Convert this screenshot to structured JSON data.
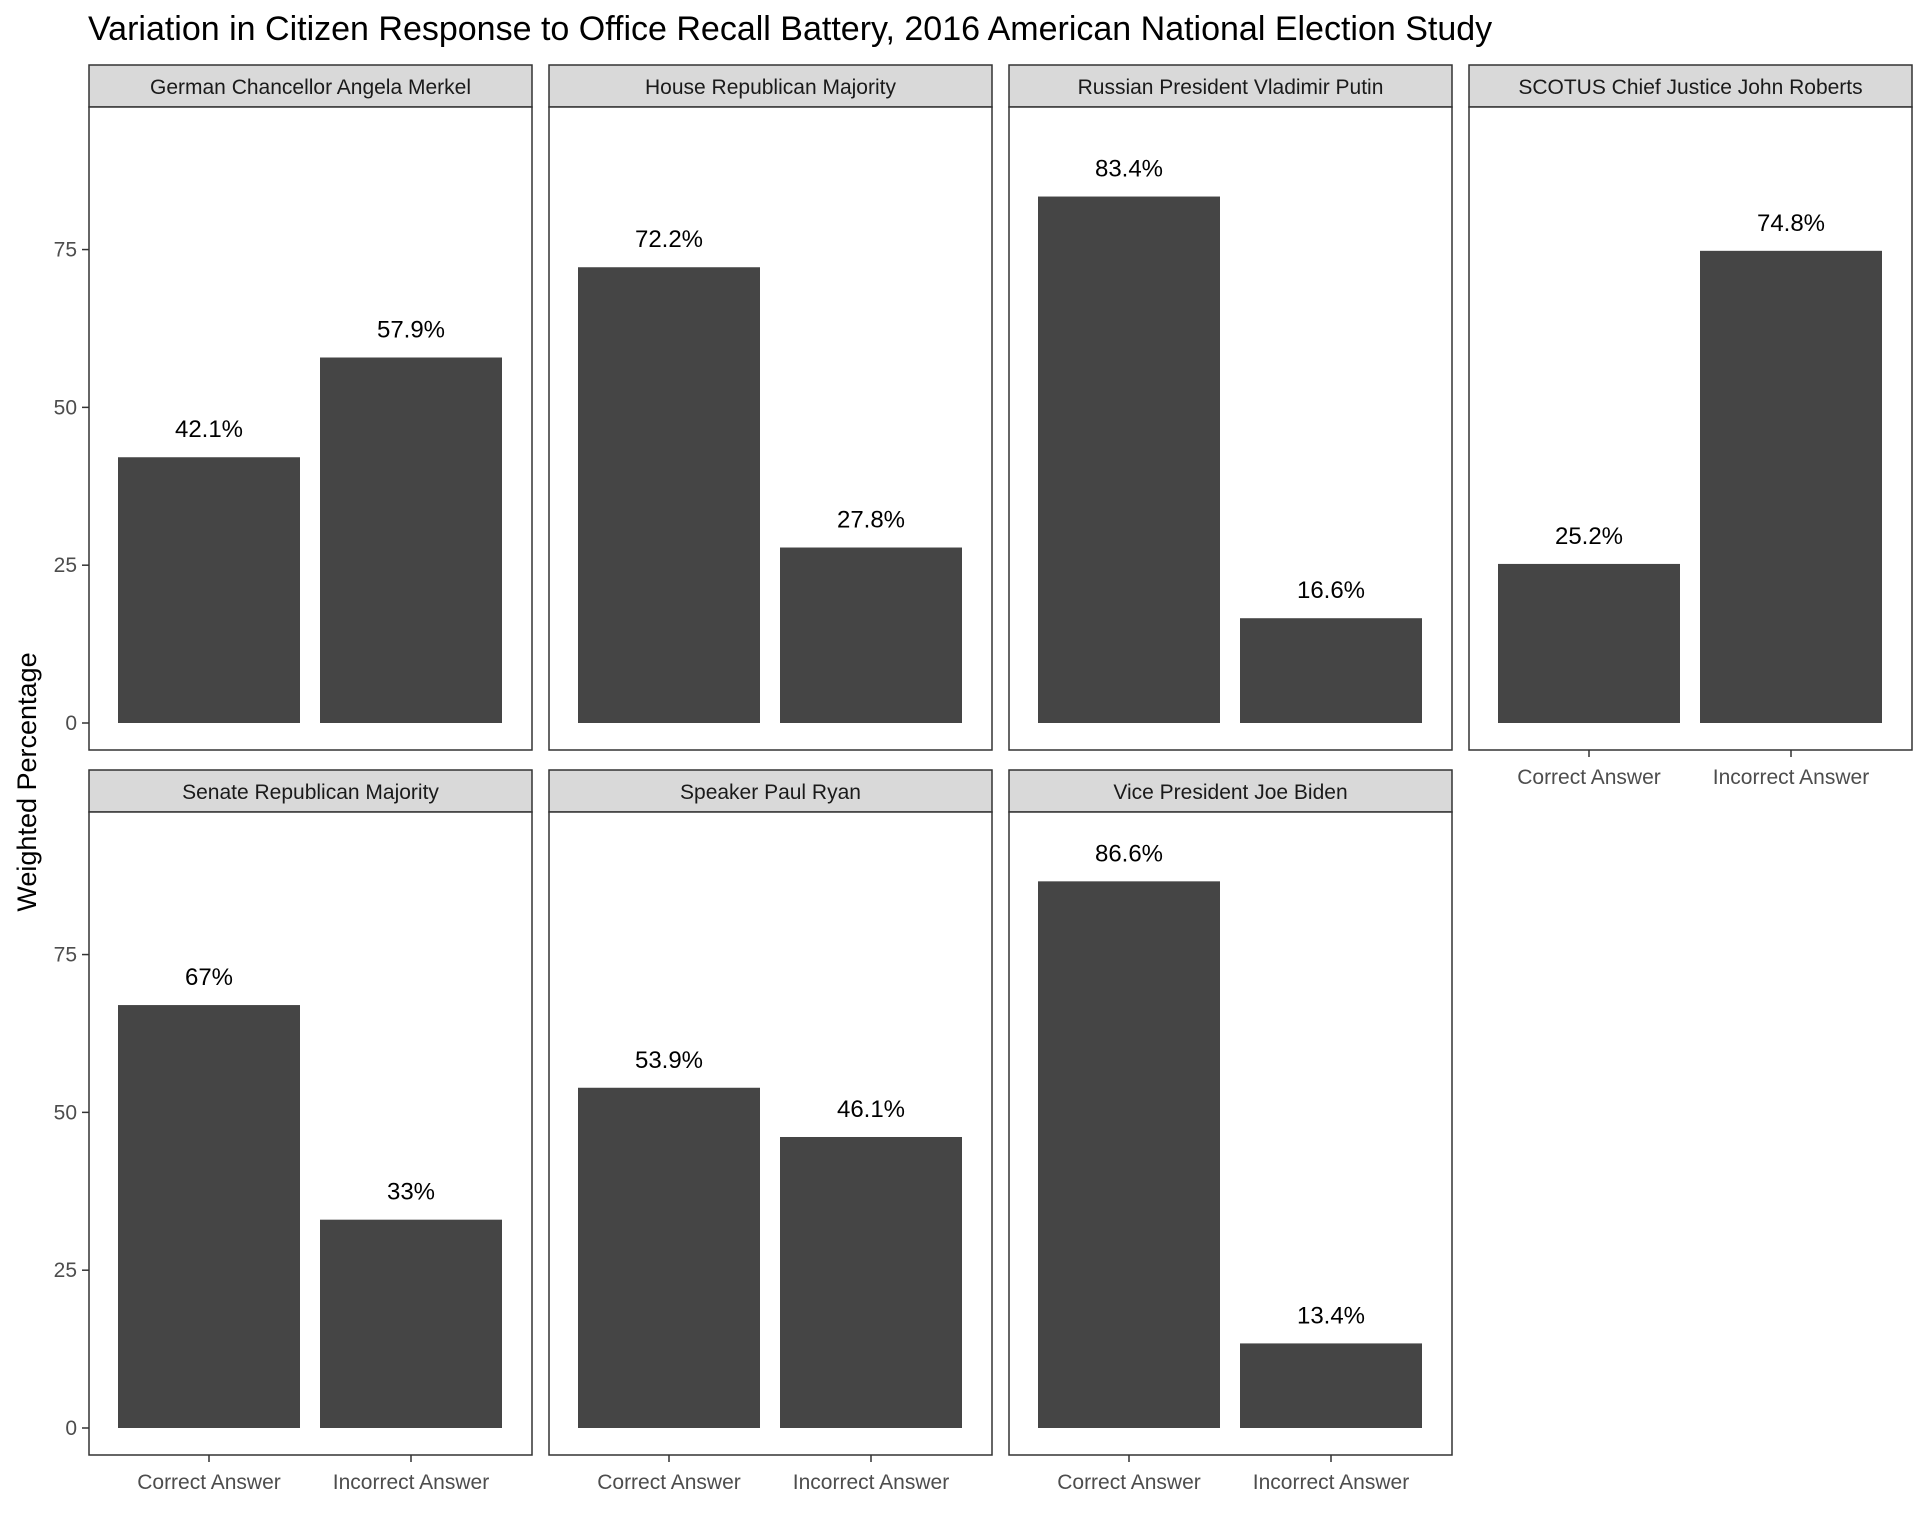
{
  "chart_data": {
    "type": "bar",
    "title": "Variation in Citizen Response to Office Recall Battery, 2016 American National Election Study",
    "xlabel": "",
    "ylabel": "Weighted Percentage",
    "categories": [
      "Correct Answer",
      "Incorrect Answer"
    ],
    "ylim": [
      0,
      96
    ],
    "y_ticks": [
      0,
      25,
      50,
      75
    ],
    "bar_color": "#454545",
    "strip_color": "#d9d9d9",
    "grid": false,
    "legend": "none",
    "facets": [
      {
        "name": "German Chancellor Angela Merkel",
        "values": [
          42.1,
          57.9
        ],
        "labels": [
          "42.1%",
          "57.9%"
        ]
      },
      {
        "name": "House Republican Majority",
        "values": [
          72.2,
          27.8
        ],
        "labels": [
          "72.2%",
          "27.8%"
        ]
      },
      {
        "name": "Russian President Vladimir Putin",
        "values": [
          83.4,
          16.6
        ],
        "labels": [
          "83.4%",
          "16.6%"
        ]
      },
      {
        "name": "SCOTUS Chief Justice John Roberts",
        "values": [
          25.2,
          74.8
        ],
        "labels": [
          "25.2%",
          "74.8%"
        ]
      },
      {
        "name": "Senate Republican Majority",
        "values": [
          67,
          33
        ],
        "labels": [
          "67%",
          "33%"
        ]
      },
      {
        "name": "Speaker Paul Ryan",
        "values": [
          53.9,
          46.1
        ],
        "labels": [
          "53.9%",
          "46.1%"
        ]
      },
      {
        "name": "Vice President Joe Biden",
        "values": [
          86.6,
          13.4
        ],
        "labels": [
          "86.6%",
          "13.4%"
        ]
      }
    ]
  }
}
